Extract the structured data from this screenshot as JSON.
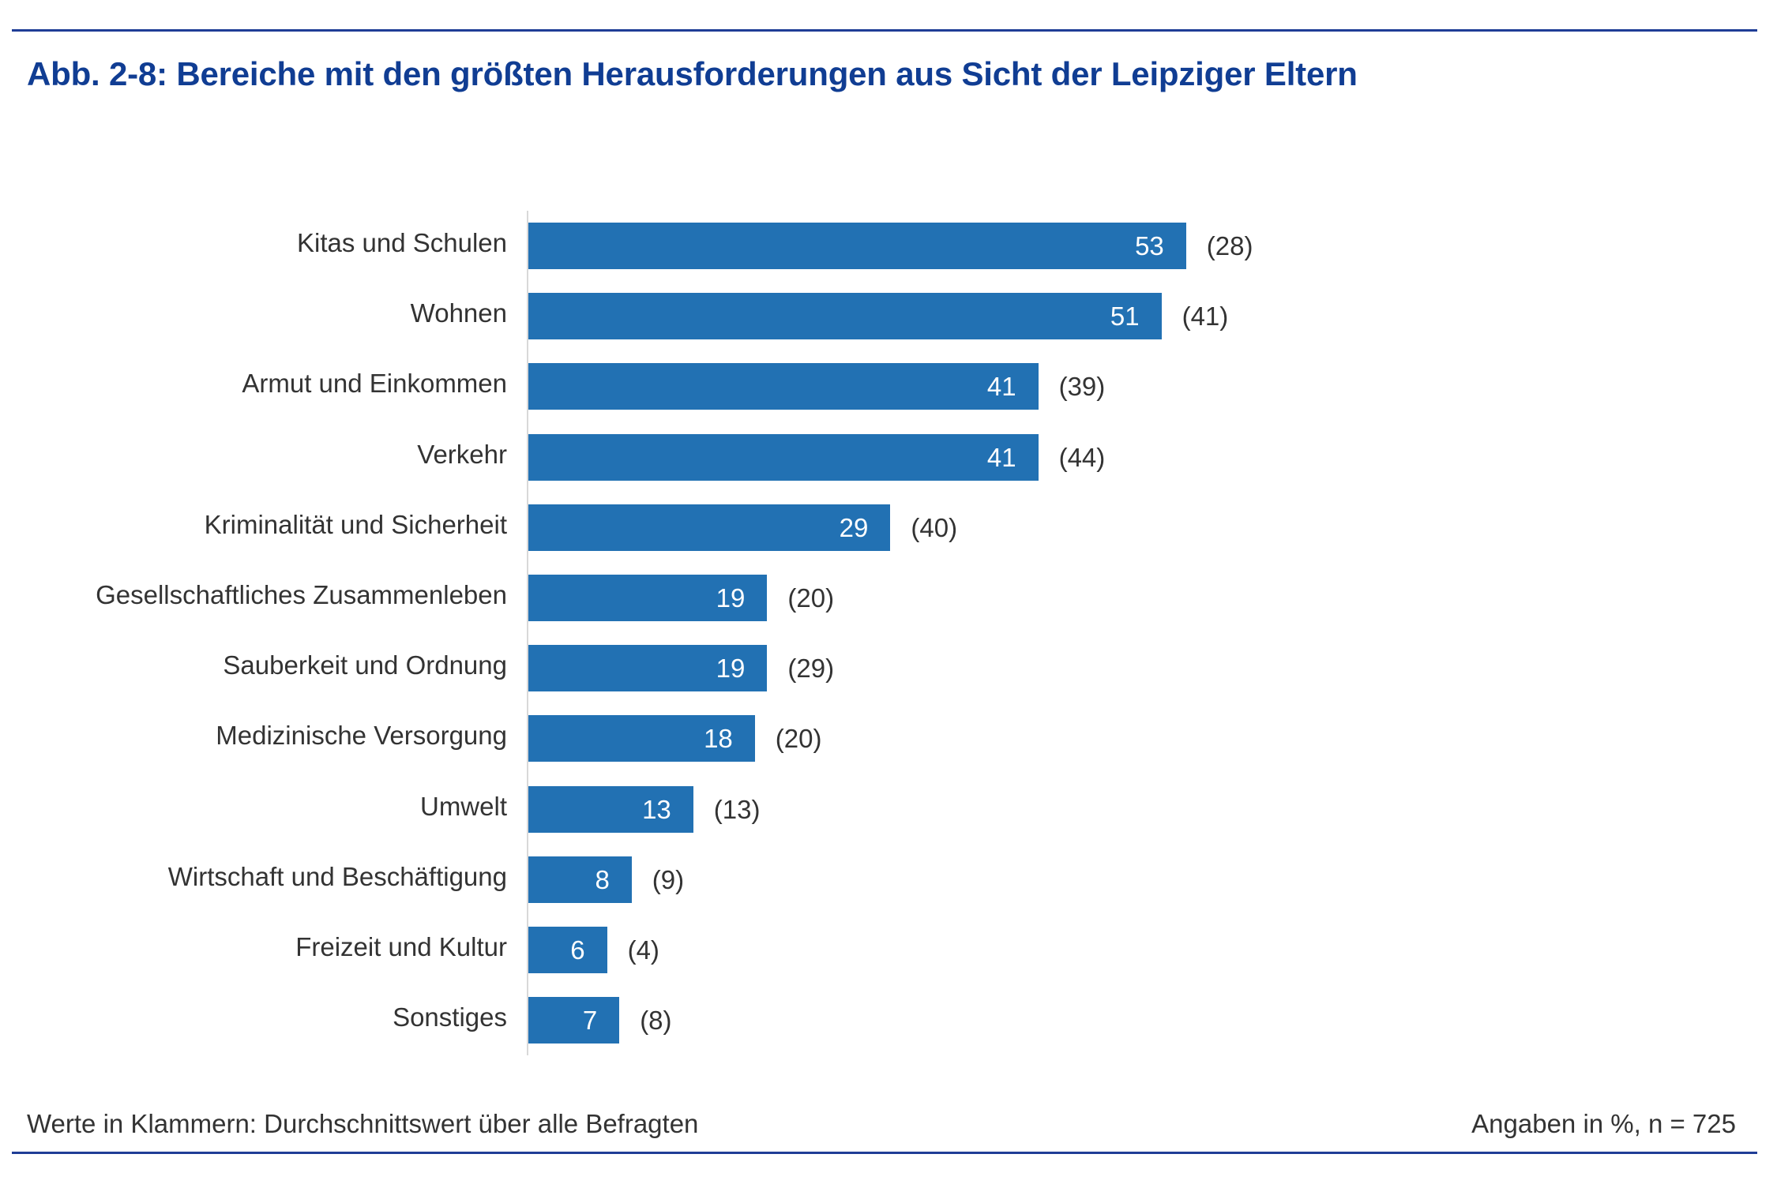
{
  "figure": {
    "title": "Abb. 2-8: Bereiche mit den größten Herausforderungen aus Sicht der Leipziger Eltern",
    "footnote": "Werte in Klammern: Durchschnittswert über alle Befragten",
    "source_note": "Angaben in %, n = 725",
    "colors": {
      "bar": "#2271b3",
      "title": "#103d93",
      "rule": "#1f3d96",
      "text": "#333333"
    }
  },
  "chart_data": {
    "type": "bar",
    "orientation": "horizontal",
    "title": "Abb. 2-8: Bereiche mit den größten Herausforderungen aus Sicht der Leipziger Eltern",
    "xlabel": "",
    "ylabel": "",
    "unit": "%",
    "n": 725,
    "grid": false,
    "categories": [
      "Kitas und Schulen",
      "Wohnen",
      "Armut und Einkommen",
      "Verkehr",
      "Kriminalität und Sicherheit",
      "Gesellschaftliches Zusammenleben",
      "Sauberkeit und Ordnung",
      "Medizinische Versorgung",
      "Umwelt",
      "Wirtschaft und Beschäftigung",
      "Freizeit und Kultur",
      "Sonstiges"
    ],
    "series": [
      {
        "name": "Leipziger Eltern",
        "values": [
          53,
          51,
          41,
          41,
          29,
          19,
          19,
          18,
          13,
          8,
          6,
          7
        ],
        "label_position": "inside-end"
      },
      {
        "name": "Durchschnittswert über alle Befragten",
        "values": [
          28,
          41,
          39,
          44,
          40,
          20,
          29,
          20,
          13,
          9,
          4,
          8
        ],
        "label_format": "(value)",
        "label_position": "outside-end"
      }
    ],
    "xlim": [
      0,
      60
    ]
  }
}
